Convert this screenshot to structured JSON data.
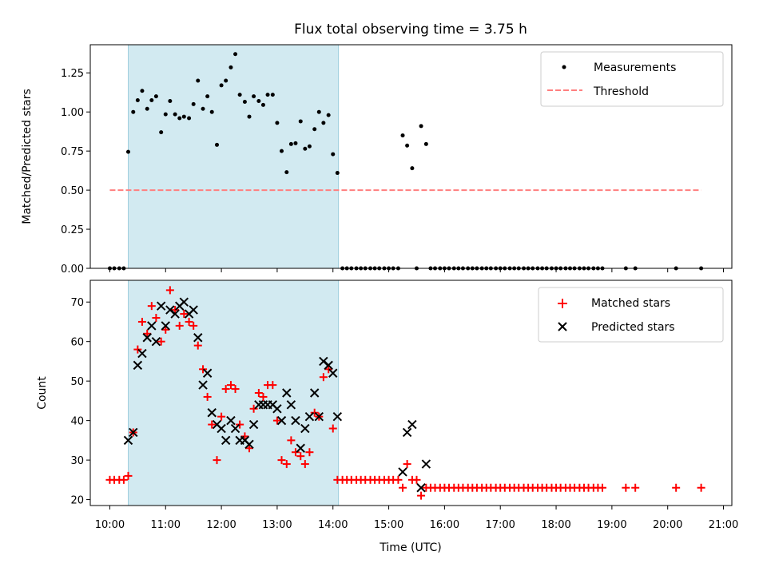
{
  "chart_data": {
    "type": "scatter",
    "title": "Flux total observing time = 3.75 h",
    "xlabel": "Time (UTC)",
    "x_ticks": [
      "10:00",
      "11:00",
      "12:00",
      "13:00",
      "14:00",
      "15:00",
      "16:00",
      "17:00",
      "18:00",
      "19:00",
      "20:00",
      "21:00"
    ],
    "xlim_hours": [
      9.65,
      21.15
    ],
    "shaded_interval_hours": [
      10.33,
      14.1
    ],
    "shade_color": "#add8e6",
    "top_panel": {
      "ylabel": "Matched/Predicted stars",
      "ylim": [
        0,
        1.43
      ],
      "y_ticks": [
        "0.00",
        "0.25",
        "0.50",
        "0.75",
        "1.00",
        "1.25"
      ],
      "threshold": {
        "name": "Threshold",
        "value": 0.5,
        "x_range_hours": [
          10.0,
          20.6
        ],
        "color": "#ff7f7f"
      },
      "series": [
        {
          "name": "Measurements",
          "color": "#000000",
          "x_hours": [
            10.0,
            10.08,
            10.17,
            10.25,
            10.33,
            10.42,
            10.5,
            10.58,
            10.67,
            10.75,
            10.83,
            10.92,
            11.0,
            11.08,
            11.17,
            11.25,
            11.33,
            11.42,
            11.5,
            11.58,
            11.67,
            11.75,
            11.83,
            11.92,
            12.0,
            12.08,
            12.17,
            12.25,
            12.33,
            12.42,
            12.5,
            12.58,
            12.67,
            12.75,
            12.83,
            12.92,
            13.0,
            13.08,
            13.17,
            13.25,
            13.33,
            13.42,
            13.5,
            13.58,
            13.67,
            13.75,
            13.83,
            13.92,
            14.0,
            14.08,
            14.17,
            14.25,
            14.33,
            14.42,
            14.5,
            14.58,
            14.67,
            14.75,
            14.83,
            14.92,
            15.0,
            15.08,
            15.17,
            15.25,
            15.33,
            15.42,
            15.5,
            15.58,
            15.67,
            15.75,
            15.83,
            15.92,
            16.0,
            16.08,
            16.17,
            16.25,
            16.33,
            16.42,
            16.5,
            16.58,
            16.67,
            16.75,
            16.83,
            16.92,
            17.0,
            17.08,
            17.17,
            17.25,
            17.33,
            17.42,
            17.5,
            17.58,
            17.67,
            17.75,
            17.83,
            17.92,
            18.0,
            18.08,
            18.17,
            18.25,
            18.33,
            18.42,
            18.5,
            18.58,
            18.67,
            18.75,
            18.83,
            19.25,
            19.42,
            20.15,
            20.6
          ],
          "y": [
            0.0,
            0.0,
            0.0,
            0.0,
            0.745,
            1.0,
            1.075,
            1.135,
            1.02,
            1.075,
            1.1,
            0.87,
            0.985,
            1.07,
            0.985,
            0.96,
            0.97,
            0.96,
            1.05,
            1.2,
            1.02,
            1.1,
            1.0,
            0.79,
            1.17,
            1.2,
            1.285,
            1.37,
            1.11,
            1.065,
            0.97,
            1.1,
            1.07,
            1.045,
            1.11,
            1.11,
            0.93,
            0.75,
            0.615,
            0.795,
            0.8,
            0.94,
            0.765,
            0.78,
            0.89,
            1.0,
            0.93,
            0.98,
            0.73,
            0.61,
            0.0,
            0.0,
            0.0,
            0.0,
            0.0,
            0.0,
            0.0,
            0.0,
            0.0,
            0.0,
            0.0,
            0.0,
            0.0,
            0.85,
            0.785,
            0.64,
            0.0,
            0.91,
            0.795,
            0.0,
            0.0,
            0.0,
            0.0,
            0.0,
            0.0,
            0.0,
            0.0,
            0.0,
            0.0,
            0.0,
            0.0,
            0.0,
            0.0,
            0.0,
            0.0,
            0.0,
            0.0,
            0.0,
            0.0,
            0.0,
            0.0,
            0.0,
            0.0,
            0.0,
            0.0,
            0.0,
            0.0,
            0.0,
            0.0,
            0.0,
            0.0,
            0.0,
            0.0,
            0.0,
            0.0,
            0.0,
            0.0,
            0.0,
            0.0,
            0.0,
            0.0
          ]
        }
      ]
    },
    "bottom_panel": {
      "ylabel": "Count",
      "ylim": [
        18.5,
        75.5
      ],
      "y_ticks": [
        "20",
        "30",
        "40",
        "50",
        "60",
        "70"
      ],
      "series": [
        {
          "name": "Matched stars",
          "marker": "+",
          "color": "#ff0000",
          "x_hours": [
            10.0,
            10.08,
            10.17,
            10.25,
            10.33,
            10.42,
            10.5,
            10.58,
            10.67,
            10.75,
            10.83,
            10.92,
            11.0,
            11.08,
            11.17,
            11.25,
            11.33,
            11.42,
            11.5,
            11.58,
            11.67,
            11.75,
            11.83,
            11.92,
            12.0,
            12.08,
            12.17,
            12.25,
            12.33,
            12.42,
            12.5,
            12.58,
            12.67,
            12.75,
            12.83,
            12.92,
            13.0,
            13.08,
            13.17,
            13.25,
            13.33,
            13.42,
            13.5,
            13.58,
            13.67,
            13.75,
            13.83,
            13.92,
            14.0,
            14.08,
            14.17,
            14.25,
            14.33,
            14.42,
            14.5,
            14.58,
            14.67,
            14.75,
            14.83,
            14.92,
            15.0,
            15.08,
            15.17,
            15.25,
            15.33,
            15.42,
            15.5,
            15.58,
            15.67,
            15.75,
            15.83,
            15.92,
            16.0,
            16.08,
            16.17,
            16.25,
            16.33,
            16.42,
            16.5,
            16.58,
            16.67,
            16.75,
            16.83,
            16.92,
            17.0,
            17.08,
            17.17,
            17.25,
            17.33,
            17.42,
            17.5,
            17.58,
            17.67,
            17.75,
            17.83,
            17.92,
            18.0,
            18.08,
            18.17,
            18.25,
            18.33,
            18.42,
            18.5,
            18.58,
            18.67,
            18.75,
            18.83,
            19.25,
            19.42,
            20.15,
            20.6
          ],
          "y": [
            25,
            25,
            25,
            25,
            26,
            37,
            58,
            65,
            62,
            69,
            66,
            60,
            63,
            73,
            68,
            64,
            67,
            65,
            64,
            59,
            53,
            46,
            39,
            30,
            41,
            48,
            49,
            48,
            39,
            36,
            33,
            43,
            47,
            46,
            49,
            49,
            40,
            30,
            29,
            35,
            32,
            31,
            29,
            32,
            42,
            41,
            51,
            53,
            38,
            25,
            25,
            25,
            25,
            25,
            25,
            25,
            25,
            25,
            25,
            25,
            25,
            25,
            25,
            23,
            29,
            25,
            25,
            21,
            23,
            23,
            23,
            23,
            23,
            23,
            23,
            23,
            23,
            23,
            23,
            23,
            23,
            23,
            23,
            23,
            23,
            23,
            23,
            23,
            23,
            23,
            23,
            23,
            23,
            23,
            23,
            23,
            23,
            23,
            23,
            23,
            23,
            23,
            23,
            23,
            23,
            23,
            23,
            23,
            23,
            23,
            23
          ]
        },
        {
          "name": "Predicted stars",
          "marker": "x",
          "color": "#000000",
          "x_hours": [
            10.33,
            10.42,
            10.5,
            10.58,
            10.67,
            10.75,
            10.83,
            10.92,
            11.0,
            11.08,
            11.17,
            11.25,
            11.33,
            11.42,
            11.5,
            11.58,
            11.67,
            11.75,
            11.83,
            11.92,
            12.0,
            12.08,
            12.17,
            12.25,
            12.33,
            12.42,
            12.5,
            12.58,
            12.67,
            12.75,
            12.83,
            12.92,
            13.0,
            13.08,
            13.17,
            13.25,
            13.33,
            13.42,
            13.5,
            13.58,
            13.67,
            13.75,
            13.83,
            13.92,
            14.0,
            14.08,
            15.25,
            15.33,
            15.42,
            15.58,
            15.67
          ],
          "y": [
            35,
            37,
            54,
            57,
            61,
            64,
            60,
            69,
            64,
            68,
            67,
            69,
            70,
            67,
            68,
            61,
            49,
            52,
            42,
            39,
            38,
            35,
            40,
            38,
            35,
            35,
            34,
            39,
            44,
            44,
            44,
            44,
            43,
            40,
            47,
            44,
            40,
            33,
            38,
            41,
            47,
            41,
            55,
            54,
            52,
            41,
            27,
            37,
            39,
            23,
            29
          ]
        }
      ]
    }
  }
}
